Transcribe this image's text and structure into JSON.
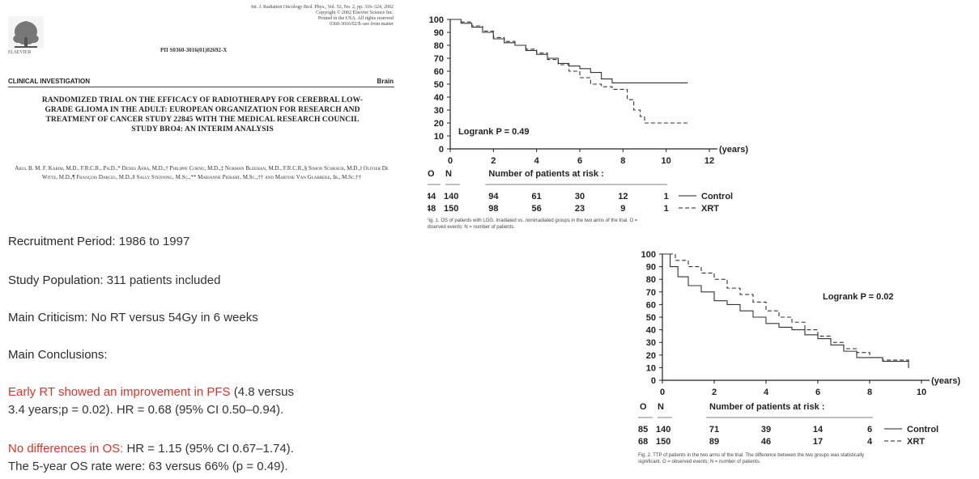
{
  "paper": {
    "journal": "Int. J. Radiation Oncology Biol. Phys., Vol. 52, No. 2, pp. 316–324, 2002",
    "copyright": "Copyright © 2002 Elsevier Science Inc.",
    "printed": "Printed in the USA. All rights reserved",
    "issn": "0360-3016/02/$–see front matter",
    "publisher": "ELSEVIER",
    "pii": "PII S0360-3016(01)02692-X",
    "section": "CLINICAL INVESTIGATION",
    "category": "Brain",
    "title": "RANDOMIZED TRIAL ON THE EFFICACY OF RADIOTHERAPY FOR CEREBRAL LOW-GRADE GLIOMA IN THE ADULT: EUROPEAN ORGANIZATION FOR RESEARCH AND TREATMENT OF CANCER STUDY 22845 WITH THE MEDICAL RESEARCH COUNCIL STUDY BRO4: AN INTERIM ANALYSIS",
    "authors": "Abul B. M. F. Karim, M.D., F.R.C.R., Ph.D.,* Denes Afra, M.D.,† Philippe Cornu, M.D.,‡ Norman Bleehan, M.D., F.R.C.R.,§ Simon Schraub, M.D.,‖ Olivier De Witte, M.D.,¶ François Darcel, M.D.,# Sally Stenning, M.Sc.,** Marianne Pierart, M.Sc.,†† and Martine Van Glabbeke, Ir., M.Sc.††"
  },
  "summary": {
    "recruitment_label": "Recruitment Period:",
    "recruitment_value": " 1986 to 1997",
    "population_label": "Study Population:",
    "population_value": " 311 patients included",
    "criticism_label": "Main Criticism:",
    "criticism_value": " No RT versus 54Gy in 6 weeks",
    "conclusions_label": "Main Conclusions:",
    "pfs_highlight": "Early RT showed an improvement in PFS",
    "pfs_text_1": "  (4.8 versus",
    "pfs_text_2": "3.4 years;p = 0.02). HR = 0.68 (95% CI 0.50–0.94).",
    "os_highlight": "No differences in OS:",
    "os_text_1": " HR = 1.15 (95% CI 0.67–1.74).",
    "os_text_2": "The 5-year OS rate were: 63 versus 66% (p = 0.49).",
    "highlight_color": "#d9342b"
  },
  "chart_data": [
    {
      "type": "line",
      "title": "",
      "xlabel": "(years)",
      "ylabel": "",
      "xlim": [
        0,
        12
      ],
      "ylim": [
        0,
        100
      ],
      "x_ticks": [
        "0",
        "2",
        "4",
        "6",
        "8",
        "10",
        "12"
      ],
      "y_ticks": [
        "0",
        "10",
        "20",
        "30",
        "40",
        "50",
        "60",
        "70",
        "80",
        "90",
        "100"
      ],
      "annotation": "Logrank P = 0.49",
      "series": [
        {
          "name": "Control",
          "style": "solid",
          "x": [
            0,
            0.5,
            1,
            1.5,
            2,
            2.5,
            3,
            3.5,
            4,
            4.5,
            5,
            5.5,
            6,
            6.5,
            7,
            7.5,
            11
          ],
          "y": [
            100,
            97,
            94,
            90,
            85,
            82,
            80,
            76,
            73,
            70,
            66,
            64,
            62,
            59,
            54,
            51,
            51
          ]
        },
        {
          "name": "XRT",
          "style": "dashed",
          "x": [
            0,
            0.5,
            1,
            1.5,
            2,
            2.5,
            3,
            3.5,
            4,
            4.5,
            5,
            5.5,
            6,
            6.5,
            7,
            7.5,
            8,
            8.2,
            8.5,
            8.8,
            9,
            11
          ],
          "y": [
            100,
            98,
            95,
            91,
            86,
            83,
            80,
            77,
            74,
            69,
            65,
            60,
            55,
            50,
            48,
            46,
            46,
            38,
            30,
            25,
            20,
            20
          ]
        }
      ],
      "risk_table": {
        "header": "Number of patients at risk :",
        "col_o": "O",
        "col_n": "N",
        "rows": [
          {
            "o": "44",
            "n": "140",
            "values": [
              "94",
              "61",
              "30",
              "12",
              "1"
            ],
            "label": "Control"
          },
          {
            "o": "48",
            "n": "150",
            "values": [
              "98",
              "56",
              "23",
              "9",
              "1"
            ],
            "label": "XRT"
          }
        ]
      },
      "caption": "Fig. 1. OS of patients with LGG. Irradiated vs. nonirradiated groups in the two arms of the trial. O = observed events; N = number of patients."
    },
    {
      "type": "line",
      "title": "",
      "xlabel": "(years)",
      "ylabel": "",
      "xlim": [
        0,
        10
      ],
      "ylim": [
        0,
        100
      ],
      "x_ticks": [
        "0",
        "2",
        "4",
        "6",
        "8",
        "10"
      ],
      "y_ticks": [
        "0",
        "10",
        "20",
        "30",
        "40",
        "50",
        "60",
        "70",
        "80",
        "90",
        "100"
      ],
      "annotation": "Logrank P = 0.02",
      "series": [
        {
          "name": "Control",
          "style": "solid",
          "x": [
            0,
            0.3,
            0.6,
            1,
            1.5,
            2,
            2.5,
            3,
            3.5,
            4,
            4.5,
            5,
            5.5,
            6,
            6.5,
            7,
            7.5,
            8,
            8.5,
            9,
            9.5
          ],
          "y": [
            100,
            90,
            82,
            75,
            70,
            63,
            60,
            55,
            50,
            45,
            42,
            40,
            36,
            33,
            28,
            23,
            18,
            18,
            15,
            15,
            10
          ]
        },
        {
          "name": "XRT",
          "style": "dashed",
          "x": [
            0,
            0.5,
            1,
            1.5,
            2,
            2.5,
            3,
            3.5,
            4,
            4.5,
            5,
            5.5,
            6,
            6.5,
            7,
            7.5,
            8,
            8.5,
            9,
            9.5
          ],
          "y": [
            100,
            95,
            90,
            85,
            80,
            73,
            68,
            62,
            55,
            50,
            46,
            40,
            35,
            30,
            25,
            22,
            18,
            16,
            16,
            8
          ]
        }
      ],
      "risk_table": {
        "header": "Number of patients at risk :",
        "col_o": "O",
        "col_n": "N",
        "rows": [
          {
            "o": "85",
            "n": "140",
            "values": [
              "71",
              "39",
              "14",
              "6"
            ],
            "label": "Control"
          },
          {
            "o": "68",
            "n": "150",
            "values": [
              "89",
              "46",
              "17",
              "4"
            ],
            "label": "XRT"
          }
        ]
      },
      "caption": "Fig. 2. TTP of patients in the two arms of the trial. The difference between the two groups was statistically significant. O = observed events; N = number of patients."
    }
  ]
}
